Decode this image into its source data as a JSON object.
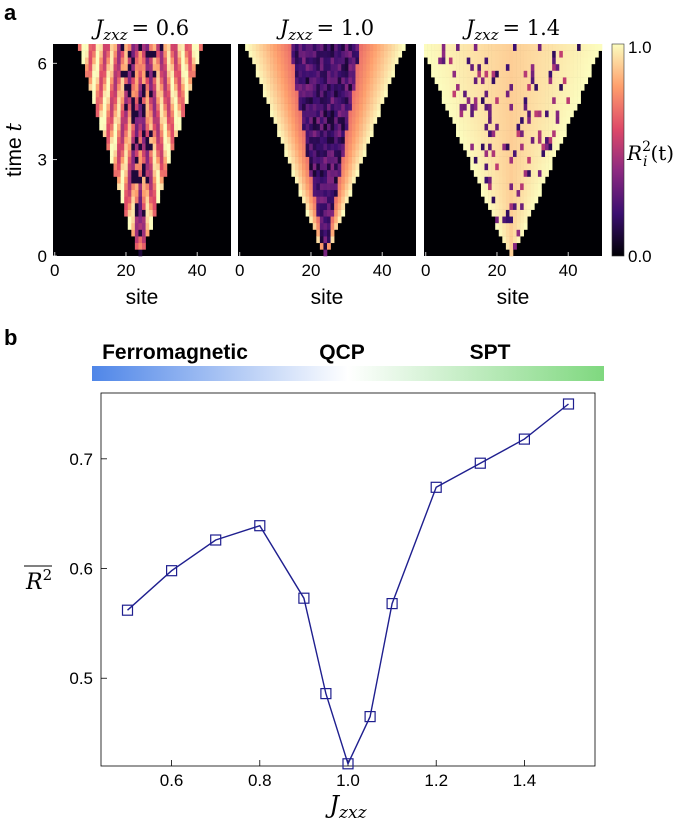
{
  "panel_a_label": "a",
  "panel_b_label": "b",
  "chart_data": [
    {
      "type": "heatmap",
      "panels": [
        {
          "title": "J_zxz = 0.6",
          "title_main": "J",
          "title_sub": "zxz",
          "title_value": "= 0.6"
        },
        {
          "title": "J_zxz = 1.0",
          "title_main": "J",
          "title_sub": "zxz",
          "title_value": "= 1.0"
        },
        {
          "title": "J_zxz = 1.4",
          "title_main": "J",
          "title_sub": "zxz",
          "title_value": "= 1.4"
        }
      ],
      "xlabel": "site",
      "ylabel": "time t",
      "ylabel_word": "time",
      "ylabel_var": "t",
      "x_ticks": [
        "0",
        "20",
        "40"
      ],
      "y_ticks": [
        "0",
        "3",
        "6"
      ],
      "xlim": [
        0,
        49
      ],
      "ylim": [
        0,
        6.6
      ],
      "colorbar": {
        "label": "R_i^2(t)",
        "label_main": "R",
        "label_sub": "i",
        "label_sup": "2",
        "label_arg": "(t)",
        "min": "0.0",
        "max": "1.0"
      },
      "colormap": [
        "#000004",
        "#3b0f70",
        "#8c2981",
        "#de4968",
        "#fe9f6d",
        "#fcfdbf"
      ]
    },
    {
      "type": "line",
      "phases": [
        "Ferromagnetic",
        "QCP",
        "SPT"
      ],
      "gradient_colors": [
        "#4f86e8",
        "#ffffff",
        "#7fd87f"
      ],
      "xlabel": "J_zxz",
      "xlabel_main": "J",
      "xlabel_sub": "zxz",
      "ylabel": "R^2 (overline)",
      "ylabel_main": "R",
      "ylabel_sup": "2",
      "x_ticks": [
        "0.6",
        "0.8",
        "1.0",
        "1.2",
        "1.4"
      ],
      "y_ticks": [
        "0.5",
        "0.6",
        "0.7"
      ],
      "xlim": [
        0.44,
        1.56
      ],
      "ylim": [
        0.42,
        0.76
      ],
      "line_color": "#1f1f8f",
      "series": [
        {
          "x": [
            0.5,
            0.6,
            0.7,
            0.8,
            0.9,
            0.95,
            1.0,
            1.05,
            1.1,
            1.2,
            1.3,
            1.4,
            1.5
          ],
          "values": [
            0.562,
            0.598,
            0.626,
            0.639,
            0.573,
            0.486,
            0.422,
            0.465,
            0.568,
            0.674,
            0.696,
            0.718,
            0.75
          ]
        }
      ]
    }
  ]
}
